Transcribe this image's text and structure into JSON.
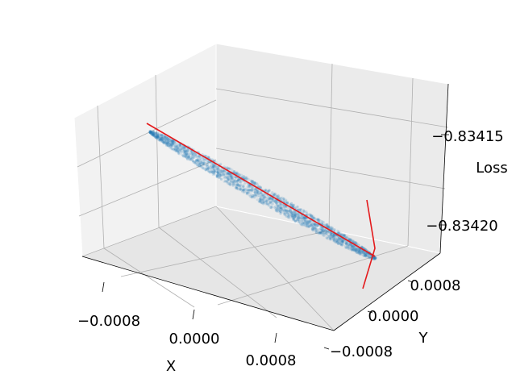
{
  "chart_data": {
    "type": "scatter",
    "projection": "3d",
    "xlabel": "X",
    "ylabel": "Y",
    "zlabel": "Loss",
    "x_ticks": [
      "−0.0008",
      "0.0000",
      "0.0008"
    ],
    "y_ticks": [
      "−0.0008",
      "0.0000",
      "0.0008"
    ],
    "z_ticks": [
      "−0.83420",
      "−0.83415"
    ],
    "grid": true,
    "colors": {
      "points": "#1f77b4",
      "lines": "#e41a1c",
      "pane": "#f2f2f2",
      "grid": "#b0b0b0"
    },
    "series": [
      {
        "kind": "scatter",
        "description_values": "dense elongated point cloud",
        "alpha": 0.15,
        "x_range": [
          -0.0011,
          0.0011
        ],
        "y_range": [
          -0.0001,
          0.0001
        ],
        "z_range": [
          -0.83423,
          -0.83411
        ]
      },
      {
        "kind": "line",
        "points": [
          [
            -0.0011,
            0.0,
            -0.83412
          ],
          [
            0.0011,
            0.0,
            -0.83423
          ]
        ]
      },
      {
        "kind": "line",
        "points": [
          [
            0.0011,
            -0.0008,
            -0.83425
          ],
          [
            0.0011,
            0.0,
            -0.83423
          ],
          [
            0.0011,
            0.0008,
            -0.83421
          ]
        ]
      }
    ]
  }
}
